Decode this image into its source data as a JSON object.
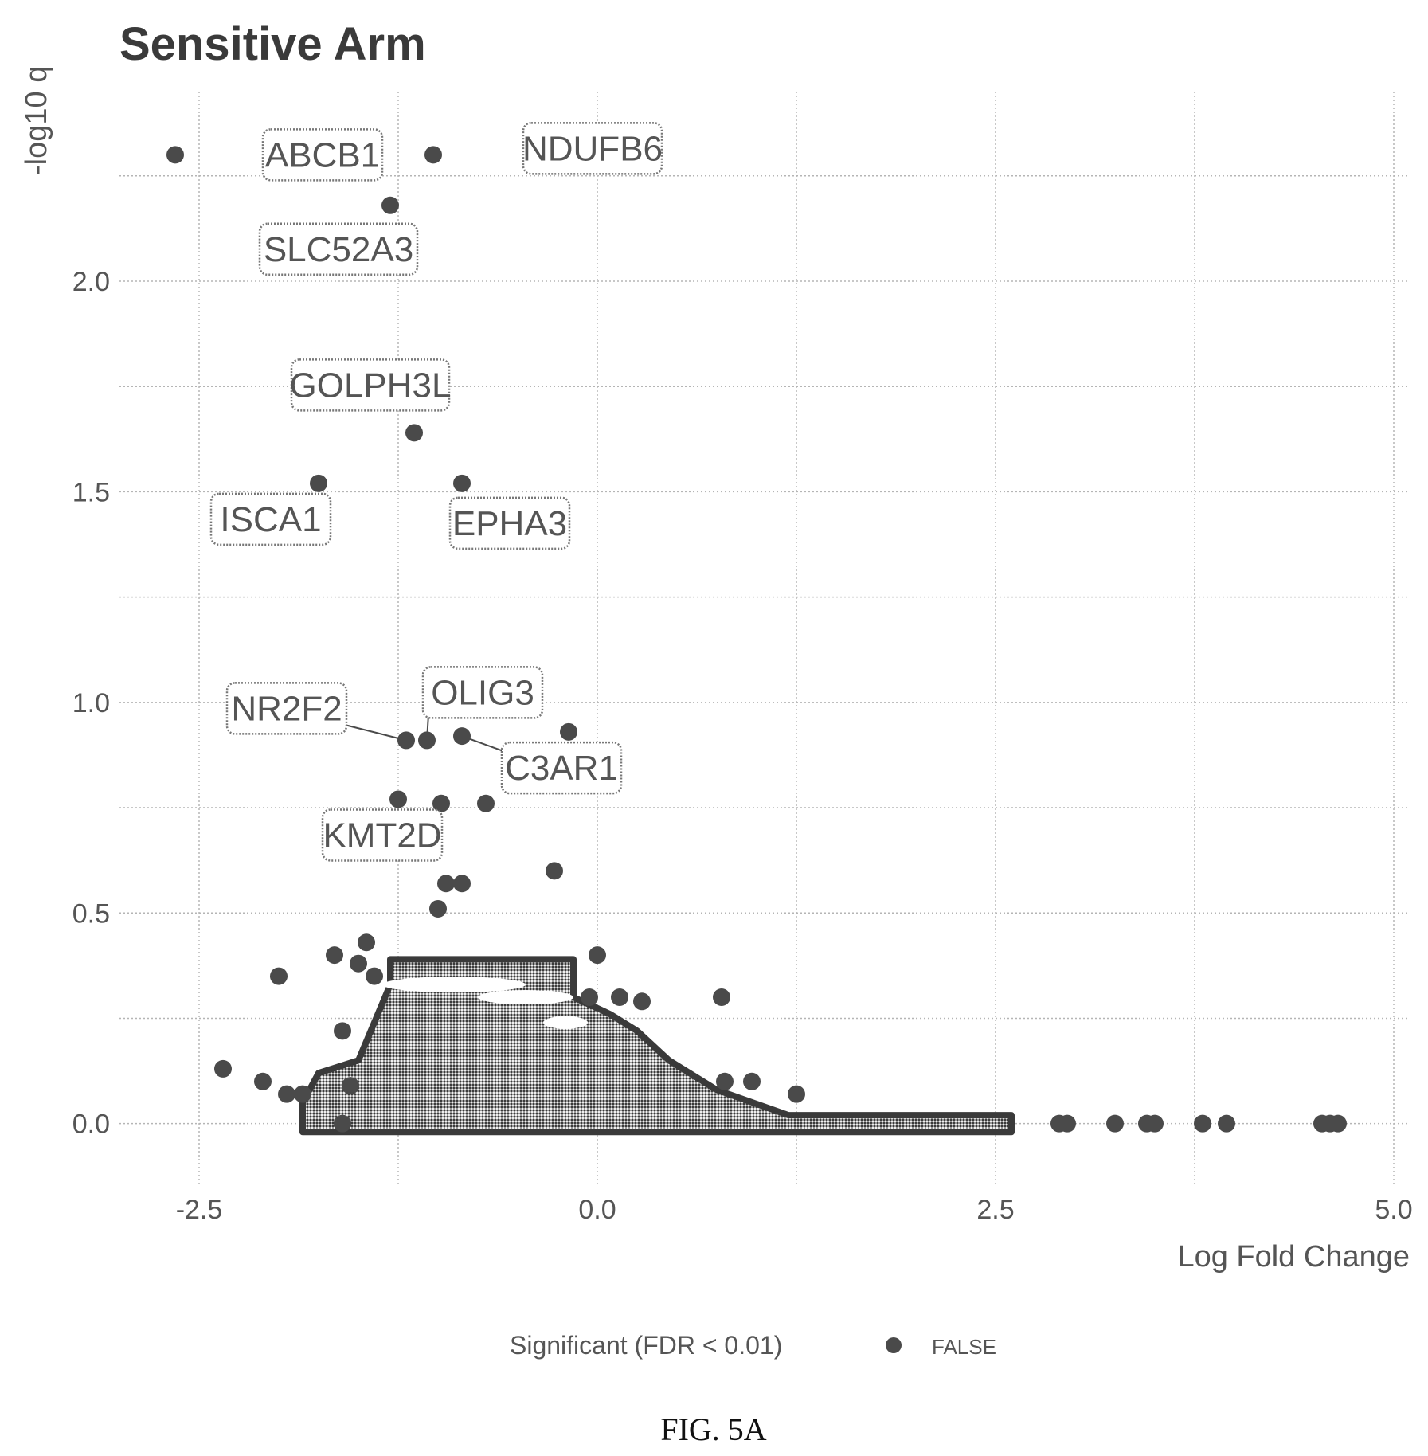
{
  "chart_data": {
    "type": "scatter",
    "title": "Sensitive Arm",
    "xlabel": "Log Fold Change",
    "ylabel": "-log10 q",
    "xlim": [
      -3.0,
      5.1
    ],
    "ylim": [
      -0.15,
      2.45
    ],
    "x_ticks": [
      {
        "value": -2.5,
        "label": "-2.5"
      },
      {
        "value": 0.0,
        "label": "0.0"
      },
      {
        "value": 2.5,
        "label": "2.5"
      },
      {
        "value": 5.0,
        "label": "5.0"
      }
    ],
    "y_ticks": [
      {
        "value": 0.0,
        "label": "0.0"
      },
      {
        "value": 0.5,
        "label": "0.5"
      },
      {
        "value": 1.0,
        "label": "1.0"
      },
      {
        "value": 1.5,
        "label": "1.5"
      },
      {
        "value": 2.0,
        "label": "2.0"
      }
    ],
    "grid": true,
    "legend": {
      "title": "Significant (FDR < 0.01)",
      "entries": [
        "FALSE"
      ],
      "position": "bottom"
    },
    "labeled_points": [
      {
        "label": "ABCB1",
        "x": -2.65,
        "y": 2.3
      },
      {
        "label": "NDUFB6",
        "x": -1.03,
        "y": 2.3
      },
      {
        "label": "SLC52A3",
        "x": -1.3,
        "y": 2.18
      },
      {
        "label": "GOLPH3L",
        "x": -1.15,
        "y": 1.64
      },
      {
        "label": "ISCA1",
        "x": -1.75,
        "y": 1.52
      },
      {
        "label": "EPHA3",
        "x": -0.85,
        "y": 1.52
      },
      {
        "label": "NR2F2",
        "x": -1.2,
        "y": 0.91
      },
      {
        "label": "OLIG3",
        "x": -1.07,
        "y": 0.91
      },
      {
        "label": "C3AR1",
        "x": -0.85,
        "y": 0.92
      },
      {
        "label": "KMT2D",
        "x": -1.25,
        "y": 0.77
      }
    ],
    "other_points": [
      {
        "x": -0.27,
        "y": 0.6
      },
      {
        "x": -0.95,
        "y": 0.57
      },
      {
        "x": -0.85,
        "y": 0.57
      },
      {
        "x": -1.0,
        "y": 0.51
      },
      {
        "x": -0.7,
        "y": 0.76
      },
      {
        "x": -0.98,
        "y": 0.76
      },
      {
        "x": -0.18,
        "y": 0.93
      },
      {
        "x": -2.0,
        "y": 0.35
      },
      {
        "x": -1.65,
        "y": 0.4
      },
      {
        "x": -1.45,
        "y": 0.43
      },
      {
        "x": -1.5,
        "y": 0.38
      },
      {
        "x": -1.4,
        "y": 0.35
      },
      {
        "x": 0.0,
        "y": 0.4
      },
      {
        "x": -0.05,
        "y": 0.3
      },
      {
        "x": 0.14,
        "y": 0.3
      },
      {
        "x": 0.28,
        "y": 0.29
      },
      {
        "x": 0.78,
        "y": 0.3
      },
      {
        "x": -2.35,
        "y": 0.13
      },
      {
        "x": -2.1,
        "y": 0.1
      },
      {
        "x": -1.95,
        "y": 0.07
      },
      {
        "x": -1.85,
        "y": 0.07
      },
      {
        "x": -1.6,
        "y": 0.22
      },
      {
        "x": -1.55,
        "y": 0.09
      },
      {
        "x": -1.6,
        "y": 0.0
      },
      {
        "x": 0.8,
        "y": 0.1
      },
      {
        "x": 0.97,
        "y": 0.1
      },
      {
        "x": 1.25,
        "y": 0.07
      },
      {
        "x": 2.9,
        "y": 0.0
      },
      {
        "x": 2.95,
        "y": 0.0
      },
      {
        "x": 3.25,
        "y": 0.0
      },
      {
        "x": 3.45,
        "y": 0.0
      },
      {
        "x": 3.5,
        "y": 0.0
      },
      {
        "x": 3.8,
        "y": 0.0
      },
      {
        "x": 3.95,
        "y": 0.0
      },
      {
        "x": 4.55,
        "y": 0.0
      },
      {
        "x": 4.6,
        "y": 0.0
      },
      {
        "x": 4.65,
        "y": 0.0
      }
    ]
  },
  "caption": "FIG. 5A"
}
